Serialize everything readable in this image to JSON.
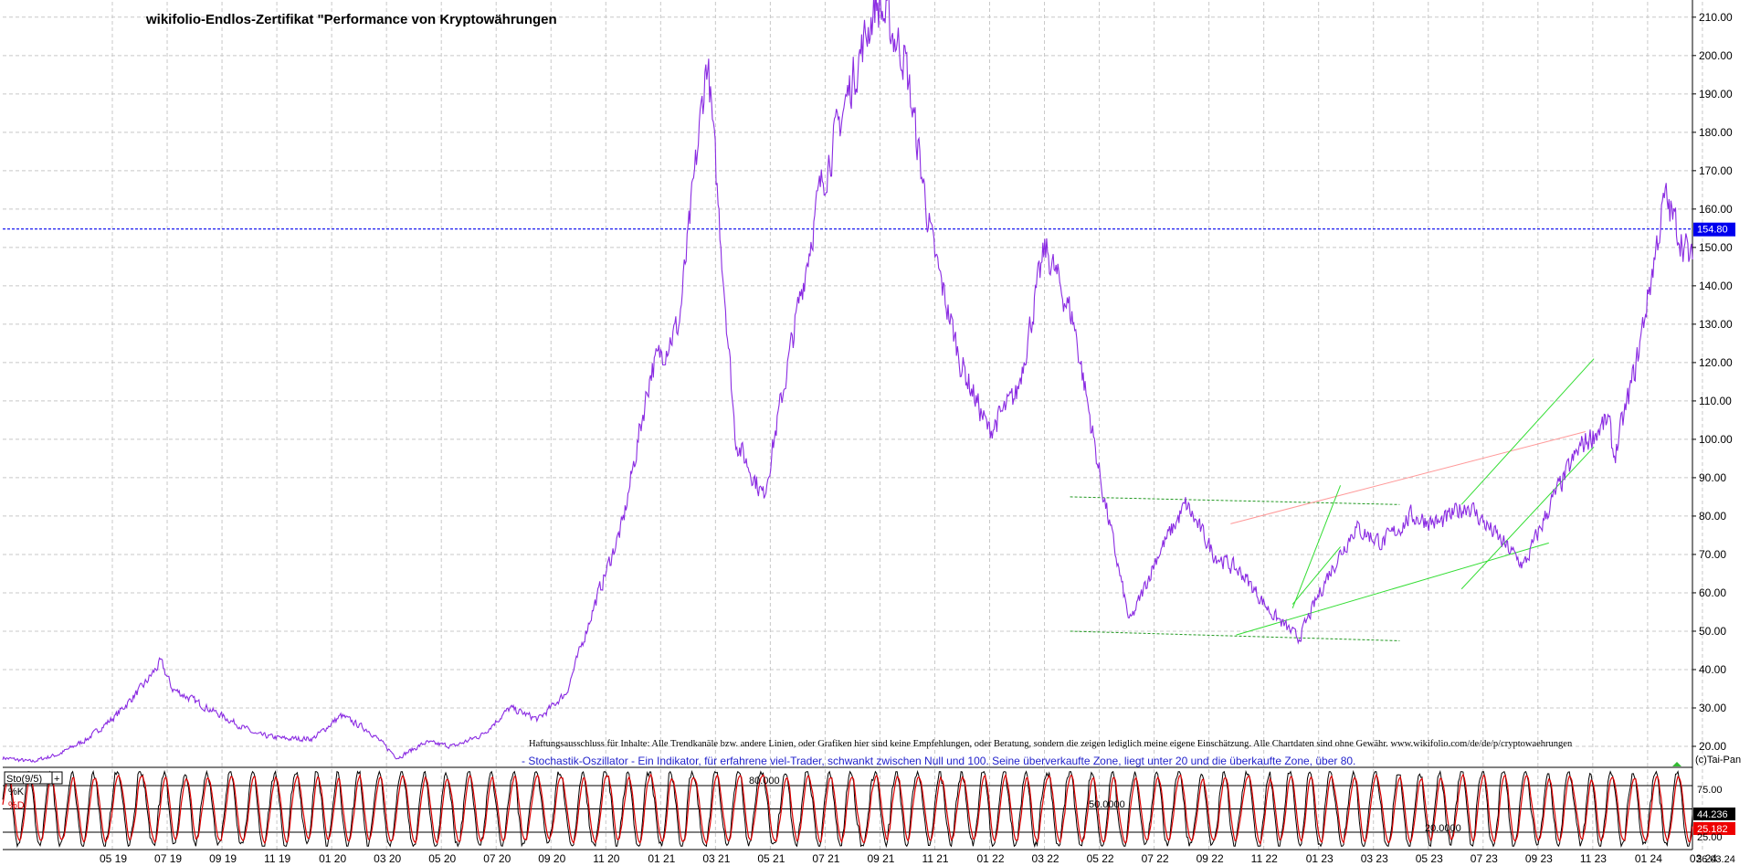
{
  "title": "wikifolio-Endlos-Zertifikat \"Performance von Kryptowährungen",
  "disclaimer": "Haftungsausschluss für Inhalte: Alle Trendkanäle bzw. andere Linien, oder Grafiken hier sind keine Empfehlungen, oder Beratung, sondern die zeigen lediglich meine eigene Einschätzung. Alle Chartdaten sind ohne Gewähr.  www.wikifolio.com/de/de/p/cryptowaehrungen",
  "stoch_note": "- Stochastik-Oszillator - Ein Indikator, für erfahrene viel-Trader, schwankt zwischen Null und 100. Seine überverkaufte Zone, liegt unter 20 und die überkaufte Zone, über 80.",
  "copyright": "(c)Tai-Pan",
  "last_price_label": "154.80",
  "last_date_label": "26.03.24",
  "colors": {
    "price": "#8a2be2",
    "stoch_k": "#000000",
    "stoch_d": "#dd0000",
    "last_price_line": "#0000ee",
    "trend_green": "#33dd33",
    "trend_red": "#ff9999",
    "range_dashed": "#229922"
  },
  "chart_data": {
    "type": "line",
    "title": "wikifolio-Endlos-Zertifikat \"Performance von Kryptowährungen",
    "ylim": [
      15,
      214
    ],
    "yticks": [
      "20.00",
      "30.00",
      "40.00",
      "50.00",
      "60.00",
      "70.00",
      "80.00",
      "90.00",
      "100.00",
      "110.00",
      "120.00",
      "130.00",
      "140.00",
      "150.00",
      "160.00",
      "170.00",
      "180.00",
      "190.00",
      "200.00",
      "210.00"
    ],
    "xticks": [
      "05 19",
      "07 19",
      "09 19",
      "11 19",
      "01 20",
      "03 20",
      "05 20",
      "07 20",
      "09 20",
      "11 20",
      "01 21",
      "03 21",
      "05 21",
      "07 21",
      "09 21",
      "11 21",
      "01 22",
      "03 22",
      "05 22",
      "07 22",
      "09 22",
      "11 22",
      "01 23",
      "03 23",
      "05 23",
      "07 23",
      "09 23",
      "11 23",
      "01 24",
      "03 24"
    ],
    "xlim": [
      0,
      60
    ],
    "series": [
      {
        "x": [
          0,
          1,
          2,
          3,
          4,
          5,
          5.6,
          6,
          7,
          8,
          8.5,
          9,
          10,
          11,
          12,
          13,
          14,
          15,
          16,
          17,
          18,
          19,
          20,
          21,
          22,
          23,
          24,
          25,
          26,
          27,
          28,
          29,
          30,
          31,
          32,
          33,
          34,
          35,
          36,
          37,
          38,
          39,
          40,
          41,
          42,
          43,
          44,
          45,
          46,
          47,
          48,
          49,
          50,
          51,
          52,
          53,
          54,
          55,
          56,
          57,
          57.2,
          58,
          59,
          60
        ],
        "y": [
          17,
          16,
          18,
          22,
          28,
          36,
          42,
          35,
          31,
          27,
          25,
          23,
          22,
          22,
          28,
          24,
          17,
          21,
          20,
          23,
          30,
          27,
          34,
          57,
          78,
          118,
          130,
          200,
          100,
          85,
          125,
          165,
          190,
          214,
          200,
          150,
          120,
          102,
          112,
          150,
          131,
          88,
          52,
          70,
          83,
          70,
          65,
          55,
          48,
          64,
          77,
          73,
          80,
          78,
          83,
          75,
          67,
          84,
          98,
          105,
          95,
          120,
          163,
          145
        ]
      }
    ],
    "annotations": [
      "154.80"
    ]
  },
  "stoch_chart": {
    "type": "line",
    "label": "Sto(9/5)",
    "k_label": "%K",
    "d_label": "%D",
    "ylim": [
      0,
      100
    ],
    "yticks": [
      "25.00",
      "50.00",
      "75.00"
    ],
    "levels": [
      "80.000",
      "50.0000",
      "20.0000"
    ],
    "k_value": "44.236",
    "d_value": "25.182"
  }
}
